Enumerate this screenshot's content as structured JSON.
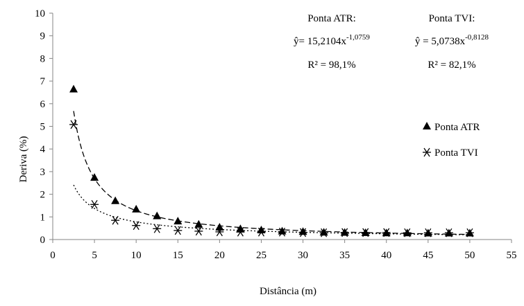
{
  "chart_data": {
    "type": "scatter",
    "xlabel": "Distância (m)",
    "ylabel": "Deriva (%)",
    "xlim": [
      0,
      55
    ],
    "ylim": [
      0,
      10
    ],
    "x_ticks": [
      "0",
      "5",
      "10",
      "15",
      "20",
      "25",
      "30",
      "35",
      "40",
      "45",
      "50",
      "55"
    ],
    "y_ticks": [
      "0",
      "1",
      "2",
      "3",
      "4",
      "5",
      "6",
      "7",
      "8",
      "9",
      "10"
    ],
    "grid": false,
    "legend_position": "right",
    "x": [
      2.5,
      5,
      7.5,
      10,
      12.5,
      15,
      17.5,
      20,
      22.5,
      25,
      27.5,
      30,
      32.5,
      35,
      37.5,
      40,
      42.5,
      45,
      47.5,
      50
    ],
    "series": [
      {
        "name": "Ponta ATR",
        "marker": "triangle",
        "values": [
          6.65,
          2.75,
          1.72,
          1.35,
          1.05,
          0.82,
          0.68,
          0.55,
          0.48,
          0.43,
          0.38,
          0.36,
          0.33,
          0.32,
          0.31,
          0.3,
          0.3,
          0.29,
          0.29,
          0.29
        ],
        "trendline": {
          "type": "power",
          "a": 15.2104,
          "b": -1.0759,
          "style": "dashed"
        }
      },
      {
        "name": "Ponta TVI",
        "marker": "asterisk",
        "values": [
          5.08,
          1.55,
          0.85,
          0.62,
          0.48,
          0.4,
          0.37,
          0.34,
          0.33,
          0.33,
          0.33,
          0.31,
          0.3,
          0.31,
          0.31,
          0.31,
          0.3,
          0.3,
          0.3,
          0.3
        ],
        "trendline": {
          "type": "power",
          "a": 5.0738,
          "b": -0.8128,
          "style": "dotted"
        }
      }
    ],
    "annotations": [
      {
        "title": "Ponta ATR:",
        "eq_prefix": "ŷ= 15,2104x",
        "eq_exp": "-1,0759",
        "r2": "R² = 98,1%"
      },
      {
        "title": "Ponta TVI:",
        "eq_prefix": "ŷ = 5,0738x",
        "eq_exp": "-0,8128",
        "r2": "R² = 82,1%"
      }
    ]
  }
}
